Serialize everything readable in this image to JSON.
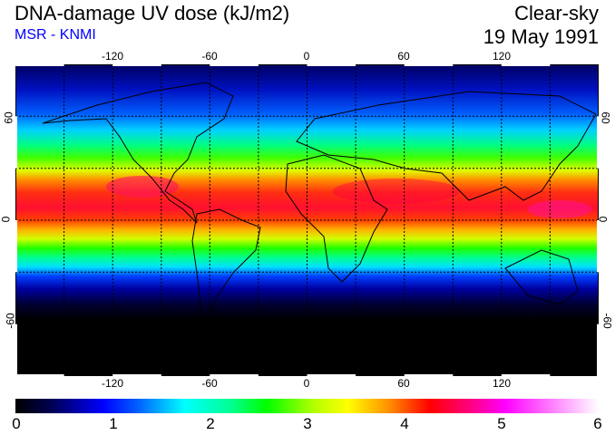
{
  "header": {
    "title": "DNA-damage UV dose (kJ/m2)",
    "source": "MSR - KNMI",
    "condition": "Clear-sky",
    "date": "19 May 1991"
  },
  "map": {
    "lon_ticks": [
      "-120",
      "-60",
      "0",
      "60",
      "120"
    ],
    "lat_ticks_left": [
      "60",
      "0",
      "-60"
    ],
    "lat_ticks_right": [
      "60",
      "0",
      "-60"
    ],
    "grid_interval_deg": 30
  },
  "colorbar": {
    "labels": [
      "0",
      "1",
      "2",
      "3",
      "4",
      "5",
      "6"
    ],
    "min": 0,
    "max": 6,
    "unit": "kJ/m2"
  }
}
